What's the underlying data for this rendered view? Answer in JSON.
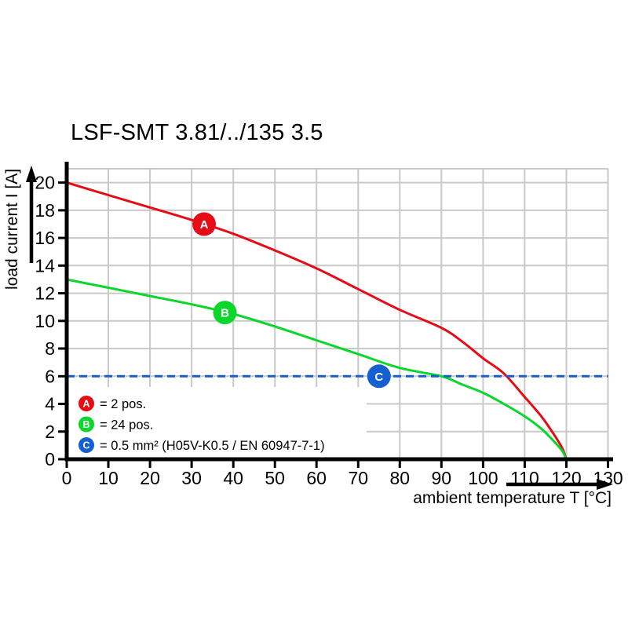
{
  "title": "LSF-SMT 3.81/../135 3.5",
  "chart_data": {
    "type": "line",
    "title": "LSF-SMT 3.81/../135 3.5",
    "xlabel": "ambient temperature T [°C]",
    "ylabel": "load current I [A]",
    "xlim": [
      0,
      130
    ],
    "ylim": [
      0,
      21
    ],
    "x_ticks": [
      0,
      10,
      20,
      30,
      40,
      50,
      60,
      70,
      80,
      90,
      100,
      110,
      120,
      130
    ],
    "y_ticks": [
      0,
      2,
      4,
      6,
      8,
      10,
      12,
      14,
      16,
      18,
      20
    ],
    "grid": true,
    "legend_position": "bottom-left",
    "colors": {
      "grid": "#c9c9c9",
      "axis": "#000000",
      "background": "#ffffff"
    },
    "series": [
      {
        "name": "A",
        "label": "2 pos.",
        "color": "#e60c16",
        "style": "solid",
        "marker": {
          "letter": "A",
          "x": 33,
          "y": 17
        },
        "points": [
          [
            0,
            20
          ],
          [
            10,
            19.1
          ],
          [
            20,
            18.2
          ],
          [
            30,
            17.3
          ],
          [
            40,
            16.3
          ],
          [
            50,
            15.1
          ],
          [
            60,
            13.8
          ],
          [
            70,
            12.3
          ],
          [
            80,
            10.8
          ],
          [
            90,
            9.5
          ],
          [
            95,
            8.5
          ],
          [
            100,
            7.3
          ],
          [
            105,
            6.2
          ],
          [
            110,
            4.5
          ],
          [
            114,
            3.1
          ],
          [
            117,
            1.8
          ],
          [
            119,
            0.8
          ],
          [
            120,
            0
          ]
        ]
      },
      {
        "name": "B",
        "label": "24 pos.",
        "color": "#0bd62b",
        "style": "solid",
        "marker": {
          "letter": "B",
          "x": 38,
          "y": 10.6
        },
        "points": [
          [
            0,
            13
          ],
          [
            10,
            12.4
          ],
          [
            20,
            11.8
          ],
          [
            30,
            11.2
          ],
          [
            40,
            10.5
          ],
          [
            50,
            9.6
          ],
          [
            60,
            8.6
          ],
          [
            70,
            7.6
          ],
          [
            80,
            6.6
          ],
          [
            90,
            6
          ],
          [
            95,
            5.4
          ],
          [
            100,
            4.8
          ],
          [
            105,
            4
          ],
          [
            110,
            3.1
          ],
          [
            114,
            2.2
          ],
          [
            117,
            1.3
          ],
          [
            119,
            0.6
          ],
          [
            120,
            0
          ]
        ]
      },
      {
        "name": "C",
        "label": "0.5 mm² (H05V-K0.5 / EN 60947-7-1)",
        "color": "#1560d0",
        "style": "dashed",
        "marker": {
          "letter": "C",
          "x": 75,
          "y": 6
        },
        "points": [
          [
            0,
            6
          ],
          [
            130,
            6
          ]
        ]
      }
    ],
    "legend": [
      {
        "letter": "A",
        "color": "#e60c16",
        "text": "= 2 pos."
      },
      {
        "letter": "B",
        "color": "#0bd62b",
        "text": "= 24 pos."
      },
      {
        "letter": "C",
        "color": "#1560d0",
        "text": "= 0.5 mm² (H05V-K0.5 / EN 60947-7-1)"
      }
    ]
  }
}
